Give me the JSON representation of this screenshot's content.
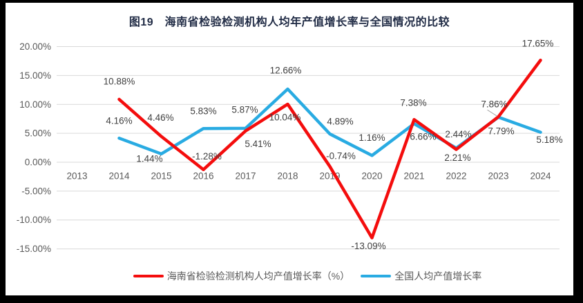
{
  "title": "图19　海南省检验检测机构人均年产值增长率与全国情况的比较",
  "legend": {
    "hainan": "海南省检验检测机构人均产值增长率（%）",
    "national": "全国人均产值增长率"
  },
  "colors": {
    "hainan": "#f40d0d",
    "national": "#29abe2",
    "grid": "#d9d9d9",
    "axis_text": "#595959",
    "label_text": "#404040",
    "title_text": "#1f2a44",
    "leader": "#a6a6a6",
    "frame": "#000000",
    "background": "#ffffff"
  },
  "chart_data": {
    "type": "line",
    "categories": [
      "2013",
      "2014",
      "2015",
      "2016",
      "2017",
      "2018",
      "2019",
      "2020",
      "2021",
      "2022",
      "2023",
      "2024"
    ],
    "series": [
      {
        "name": "全国人均产值增长率",
        "color_key": "national",
        "values": [
          null,
          4.16,
          1.44,
          5.83,
          5.87,
          12.66,
          4.89,
          1.16,
          6.66,
          2.44,
          7.79,
          5.18
        ],
        "label_offsets": [
          [
            0,
            0
          ],
          [
            0,
            -25
          ],
          [
            -17,
            7
          ],
          [
            0,
            -25
          ],
          [
            -1,
            -27
          ],
          [
            -3,
            -27
          ],
          [
            15,
            -18
          ],
          [
            0,
            -26
          ],
          [
            13,
            19
          ],
          [
            3,
            -20
          ],
          [
            4,
            20
          ],
          [
            13,
            11
          ]
        ],
        "leader_indexes": []
      },
      {
        "name": "海南省检验检测机构人均产值增长率（%）",
        "color_key": "hainan",
        "values": [
          null,
          10.88,
          4.46,
          -1.28,
          5.41,
          10.04,
          -0.74,
          -13.09,
          7.38,
          2.21,
          7.86,
          17.65
        ],
        "label_offsets": [
          [
            0,
            0
          ],
          [
            0,
            -26
          ],
          [
            -1,
            -27
          ],
          [
            5,
            -19
          ],
          [
            18,
            19
          ],
          [
            -4,
            19
          ],
          [
            16,
            -15
          ],
          [
            -5,
            12
          ],
          [
            -1,
            -24
          ],
          [
            2,
            12
          ],
          [
            -6,
            -18
          ],
          [
            -4,
            -24
          ]
        ],
        "leader_indexes": [
          10
        ]
      }
    ],
    "ylim": [
      -15,
      20
    ],
    "ytick_step": 5,
    "value_format": "percent_2dp",
    "grid": true,
    "legend_position": "bottom"
  }
}
